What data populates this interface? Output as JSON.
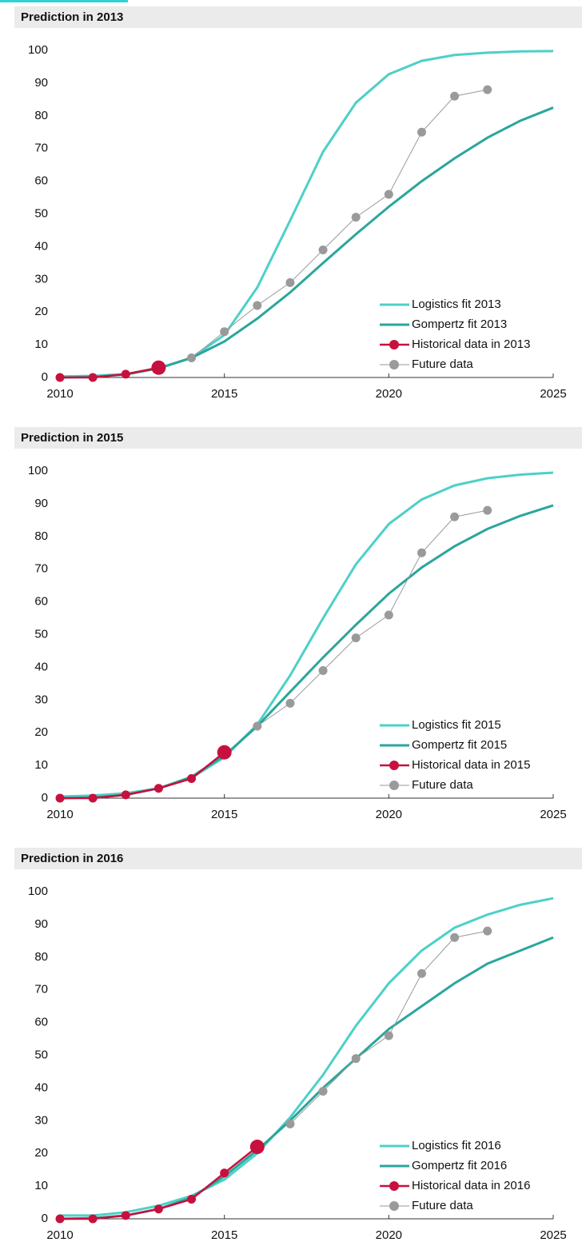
{
  "chart_data": [
    {
      "type": "line",
      "title": "Prediction in 2013",
      "xlim": [
        2010,
        2025
      ],
      "xticks": [
        2010,
        2015,
        2020,
        2025
      ],
      "ylim": [
        0,
        100
      ],
      "yticks": [
        0,
        10,
        20,
        30,
        40,
        50,
        60,
        70,
        80,
        90,
        100
      ],
      "legend": "lower right",
      "series": [
        {
          "name": "Logistics fit 2013",
          "color": "#4dd0c8",
          "x": [
            2010,
            2011,
            2012,
            2013,
            2014,
            2015,
            2016,
            2017,
            2018,
            2019,
            2020,
            2021,
            2022,
            2023,
            2024,
            2025
          ],
          "values": [
            0.3,
            0.5,
            1,
            2.8,
            6,
            13,
            27.5,
            48,
            69,
            84,
            92.7,
            96.8,
            98.6,
            99.3,
            99.7,
            99.8
          ]
        },
        {
          "name": "Gompertz fit 2013",
          "color": "#2aa69c",
          "x": [
            2010,
            2011,
            2012,
            2013,
            2014,
            2015,
            2016,
            2017,
            2018,
            2019,
            2020,
            2021,
            2022,
            2023,
            2024,
            2025
          ],
          "values": [
            0,
            0.2,
            0.9,
            2.8,
            6,
            11,
            18,
            26,
            35,
            43.8,
            52.2,
            60,
            67,
            73.3,
            78.5,
            82.5
          ]
        },
        {
          "name": "Historical data in 2013",
          "color": "#c8103e",
          "marker": true,
          "highlight": "last",
          "x": [
            2010,
            2011,
            2012,
            2013
          ],
          "values": [
            0,
            0,
            1,
            3
          ]
        },
        {
          "name": "Future data",
          "color": "#9a9a9a",
          "marker": true,
          "x": [
            2014,
            2015,
            2016,
            2017,
            2018,
            2019,
            2020,
            2021,
            2022,
            2023
          ],
          "values": [
            6,
            14,
            22,
            29,
            39,
            49,
            56,
            75,
            86,
            88
          ]
        }
      ]
    },
    {
      "type": "line",
      "title": "Prediction in 2015",
      "xlim": [
        2010,
        2025
      ],
      "xticks": [
        2010,
        2015,
        2020,
        2025
      ],
      "ylim": [
        0,
        100
      ],
      "yticks": [
        0,
        10,
        20,
        30,
        40,
        50,
        60,
        70,
        80,
        90,
        100
      ],
      "legend": "lower right",
      "series": [
        {
          "name": "Logistics fit 2015",
          "color": "#4dd0c8",
          "x": [
            2010,
            2011,
            2012,
            2013,
            2014,
            2015,
            2016,
            2017,
            2018,
            2019,
            2020,
            2021,
            2022,
            2023,
            2024,
            2025
          ],
          "values": [
            0.5,
            0.8,
            1.5,
            3,
            6.2,
            12.5,
            22.5,
            37.5,
            55,
            71.5,
            83.8,
            91.3,
            95.6,
            97.8,
            98.9,
            99.5
          ]
        },
        {
          "name": "Gompertz fit 2015",
          "color": "#2aa69c",
          "x": [
            2010,
            2011,
            2012,
            2013,
            2014,
            2015,
            2016,
            2017,
            2018,
            2019,
            2020,
            2021,
            2022,
            2023,
            2024,
            2025
          ],
          "values": [
            0,
            0.2,
            1,
            3,
            6.5,
            13,
            22,
            32.5,
            43,
            53,
            62.5,
            70.5,
            77,
            82.3,
            86.3,
            89.5
          ]
        },
        {
          "name": "Historical data in 2015",
          "color": "#c8103e",
          "marker": true,
          "highlight": "last",
          "x": [
            2010,
            2011,
            2012,
            2013,
            2014,
            2015
          ],
          "values": [
            0,
            0,
            1,
            3,
            6,
            14
          ]
        },
        {
          "name": "Future data",
          "color": "#9a9a9a",
          "marker": true,
          "x": [
            2016,
            2017,
            2018,
            2019,
            2020,
            2021,
            2022,
            2023
          ],
          "values": [
            22,
            29,
            39,
            49,
            56,
            75,
            86,
            88
          ]
        }
      ]
    },
    {
      "type": "line",
      "title": "Prediction in 2016",
      "xlim": [
        2010,
        2025
      ],
      "xticks": [
        2010,
        2015,
        2020,
        2025
      ],
      "ylim": [
        0,
        100
      ],
      "yticks": [
        0,
        10,
        20,
        30,
        40,
        50,
        60,
        70,
        80,
        90,
        100
      ],
      "legend": "lower right",
      "series": [
        {
          "name": "Logistics fit 2016",
          "color": "#4dd0c8",
          "x": [
            2010,
            2011,
            2012,
            2013,
            2014,
            2015,
            2016,
            2017,
            2018,
            2019,
            2020,
            2021,
            2022,
            2023,
            2024,
            2025
          ],
          "values": [
            1,
            1,
            2,
            4,
            7,
            12,
            20,
            31,
            44,
            59,
            72,
            82,
            89,
            93,
            96,
            98
          ]
        },
        {
          "name": "Gompertz fit 2016",
          "color": "#2aa69c",
          "x": [
            2010,
            2011,
            2012,
            2013,
            2014,
            2015,
            2016,
            2017,
            2018,
            2019,
            2020,
            2021,
            2022,
            2023,
            2024,
            2025
          ],
          "values": [
            0,
            0.2,
            1,
            3,
            6.5,
            13,
            21,
            30,
            40,
            49,
            58,
            65,
            72,
            78,
            82,
            86
          ]
        },
        {
          "name": "Historical data in 2016",
          "color": "#c8103e",
          "marker": true,
          "highlight": "last",
          "x": [
            2010,
            2011,
            2012,
            2013,
            2014,
            2015,
            2016
          ],
          "values": [
            0,
            0,
            1,
            3,
            6,
            14,
            22
          ]
        },
        {
          "name": "Future data",
          "color": "#9a9a9a",
          "marker": true,
          "x": [
            2017,
            2018,
            2019,
            2020,
            2021,
            2022,
            2023
          ],
          "values": [
            29,
            39,
            49,
            56,
            75,
            86,
            88
          ]
        }
      ]
    }
  ]
}
